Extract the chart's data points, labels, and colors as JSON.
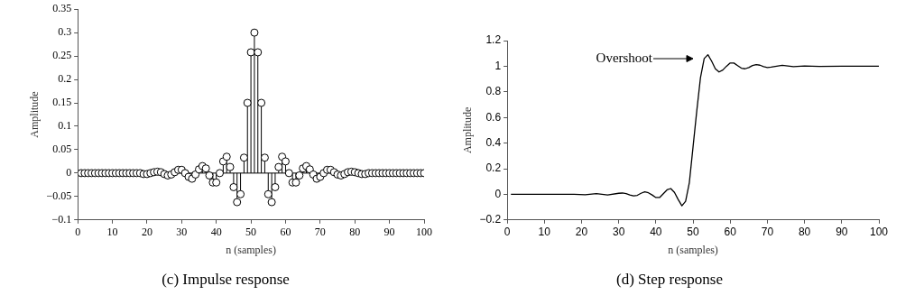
{
  "chart_data": [
    {
      "type": "lollipop",
      "title": "(c) Impulse response",
      "xlabel": "n (samples)",
      "ylabel": "Amplitude",
      "marker": "circle",
      "x": [
        1,
        2,
        3,
        4,
        5,
        6,
        7,
        8,
        9,
        10,
        11,
        12,
        13,
        14,
        15,
        16,
        17,
        18,
        19,
        20,
        21,
        22,
        23,
        24,
        25,
        26,
        27,
        28,
        29,
        30,
        31,
        32,
        33,
        34,
        35,
        36,
        37,
        38,
        39,
        40,
        41,
        42,
        43,
        44,
        45,
        46,
        47,
        48,
        49,
        50,
        51,
        52,
        53,
        54,
        55,
        56,
        57,
        58,
        59,
        60,
        61,
        62,
        63,
        64,
        65,
        66,
        67,
        68,
        69,
        70,
        71,
        72,
        73,
        74,
        75,
        76,
        77,
        78,
        79,
        80,
        81,
        82,
        83,
        84,
        85,
        86,
        87,
        88,
        89,
        90,
        91,
        92,
        93,
        94,
        95,
        96,
        97,
        98,
        99,
        100
      ],
      "series": [
        {
          "color": "#000000",
          "values": [
            0,
            0,
            0,
            0,
            0,
            0,
            0,
            0,
            0,
            0,
            0,
            0,
            0,
            0,
            0,
            0,
            0,
            0,
            -0.002,
            -0.002,
            0,
            0.002,
            0.003,
            0.002,
            -0.002,
            -0.005,
            -0.003,
            0.002,
            0.007,
            0.007,
            0,
            -0.008,
            -0.012,
            -0.003,
            0.008,
            0.015,
            0.01,
            -0.005,
            -0.02,
            -0.02,
            0,
            0.025,
            0.035,
            0.013,
            -0.03,
            -0.062,
            -0.045,
            0.033,
            0.15,
            0.258,
            0.3,
            0.258,
            0.15,
            0.033,
            -0.045,
            -0.062,
            -0.03,
            0.013,
            0.035,
            0.025,
            0,
            -0.02,
            -0.02,
            -0.005,
            0.01,
            0.015,
            0.008,
            -0.003,
            -0.012,
            -0.008,
            0,
            0.007,
            0.007,
            0.002,
            -0.003,
            -0.005,
            -0.002,
            0.002,
            0.003,
            0.002,
            0,
            -0.002,
            -0.002,
            0,
            0,
            0,
            0,
            0,
            0,
            0,
            0,
            0,
            0,
            0,
            0,
            0,
            0,
            0,
            0,
            0
          ]
        }
      ],
      "xlim": [
        0,
        100
      ],
      "xticks": [
        0,
        10,
        20,
        30,
        40,
        50,
        60,
        70,
        80,
        90,
        100
      ],
      "ylim": [
        -0.1,
        0.35
      ],
      "yticks": [
        -0.1,
        -0.05,
        0,
        0.05,
        0.1,
        0.15,
        0.2,
        0.25,
        0.3,
        0.35
      ]
    },
    {
      "type": "line",
      "title": "(d) Step response",
      "xlabel": "n (samples)",
      "ylabel": "Amplitude",
      "line_style": "solid",
      "x": [
        1,
        5,
        10,
        15,
        18,
        21,
        24,
        27,
        30,
        31,
        32,
        33,
        34,
        35,
        36,
        37,
        38,
        39,
        40,
        41,
        42,
        43,
        44,
        45,
        46,
        47,
        48,
        49,
        50,
        51,
        52,
        53,
        54,
        55,
        56,
        57,
        58,
        59,
        60,
        61,
        62,
        63,
        64,
        65,
        66,
        67,
        68,
        69,
        70,
        71,
        74,
        77,
        80,
        84,
        90,
        95,
        100
      ],
      "series": [
        {
          "color": "#000000",
          "values": [
            0,
            0,
            0,
            0,
            0,
            -0.003,
            0.005,
            -0.005,
            0.008,
            0.01,
            0.005,
            -0.005,
            -0.012,
            -0.008,
            0.008,
            0.02,
            0.012,
            -0.005,
            -0.025,
            -0.025,
            0.005,
            0.035,
            0.045,
            0.015,
            -0.04,
            -0.09,
            -0.055,
            0.09,
            0.37,
            0.65,
            0.91,
            1.06,
            1.09,
            1.04,
            0.98,
            0.955,
            0.97,
            1.0,
            1.025,
            1.025,
            1.005,
            0.985,
            0.98,
            0.99,
            1.005,
            1.012,
            1.008,
            0.997,
            0.99,
            0.993,
            1.007,
            0.997,
            1.002,
            0.998,
            1,
            1,
            1
          ]
        }
      ],
      "annotations": [
        "Overshoot"
      ],
      "xlim": [
        0,
        100
      ],
      "xticks": [
        0,
        10,
        20,
        30,
        40,
        50,
        60,
        70,
        80,
        90,
        100
      ],
      "ylim": [
        -0.2,
        1.2
      ],
      "yticks": [
        -0.2,
        0,
        0.2,
        0.4,
        0.6,
        0.8,
        1,
        1.2
      ]
    }
  ]
}
